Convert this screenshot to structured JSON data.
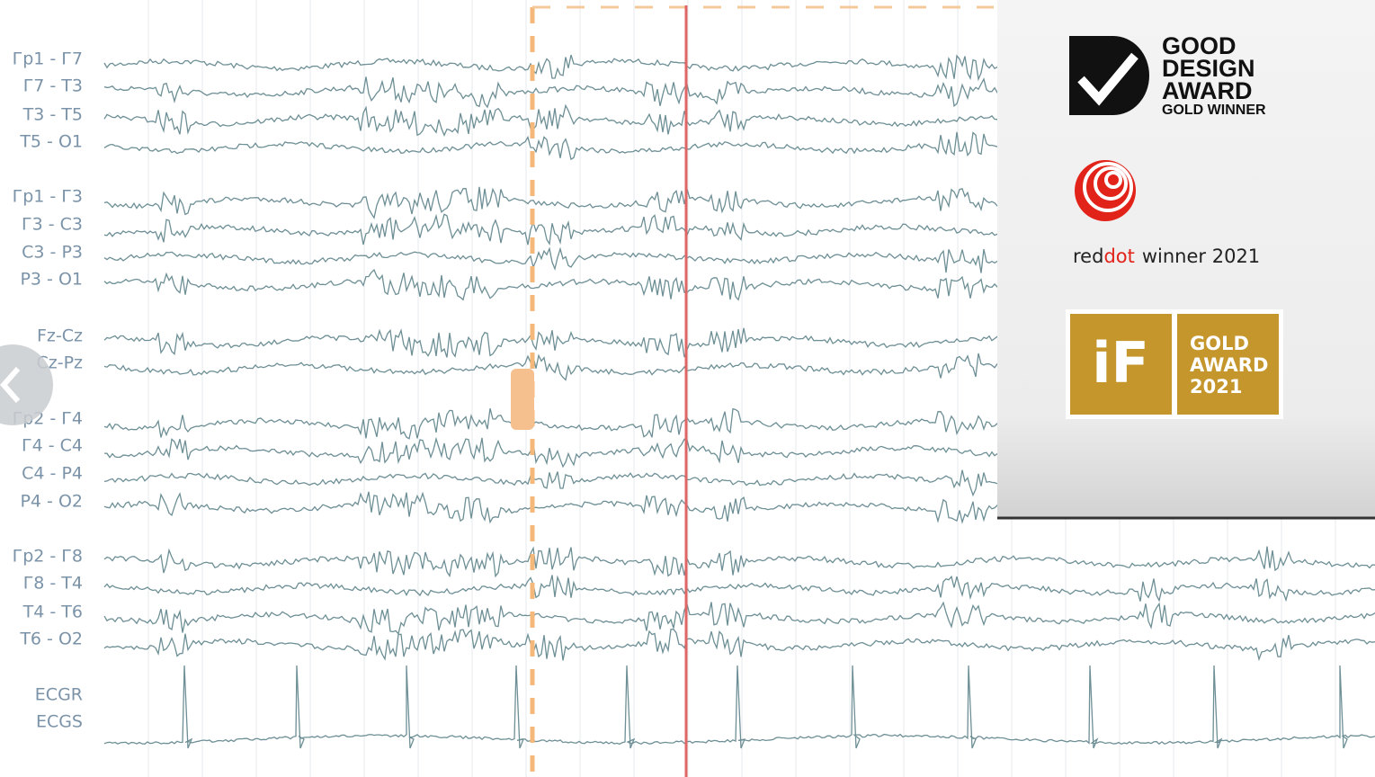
{
  "channels": [
    "Гр1 - Г7",
    "Г7 - T3",
    "T3 - T5",
    "T5 - O1",
    "Гр1 - Г3",
    "Г3 - C3",
    "C3 - P3",
    "P3 - O1",
    "Fz-Cz",
    "Cz-Pz",
    "Гр2 - Г4",
    "Г4 - C4",
    "C4 - P4",
    "P4 - O2",
    "Гр2 - Г8",
    "Г8 - T4",
    "T4 - T6",
    "T6 - O2",
    "ECGR",
    "ECGS"
  ],
  "awards": {
    "good_design": {
      "lines": [
        "GOOD",
        "DESIGN",
        "AWARD"
      ],
      "subtitle": "GOLD WINNER"
    },
    "reddot": {
      "brand_red": "red",
      "brand_dot": "dot",
      "text": "winner 2021"
    },
    "if": {
      "logo": "iF",
      "lines": [
        "GOLD",
        "AWARD",
        "2021"
      ]
    }
  }
}
